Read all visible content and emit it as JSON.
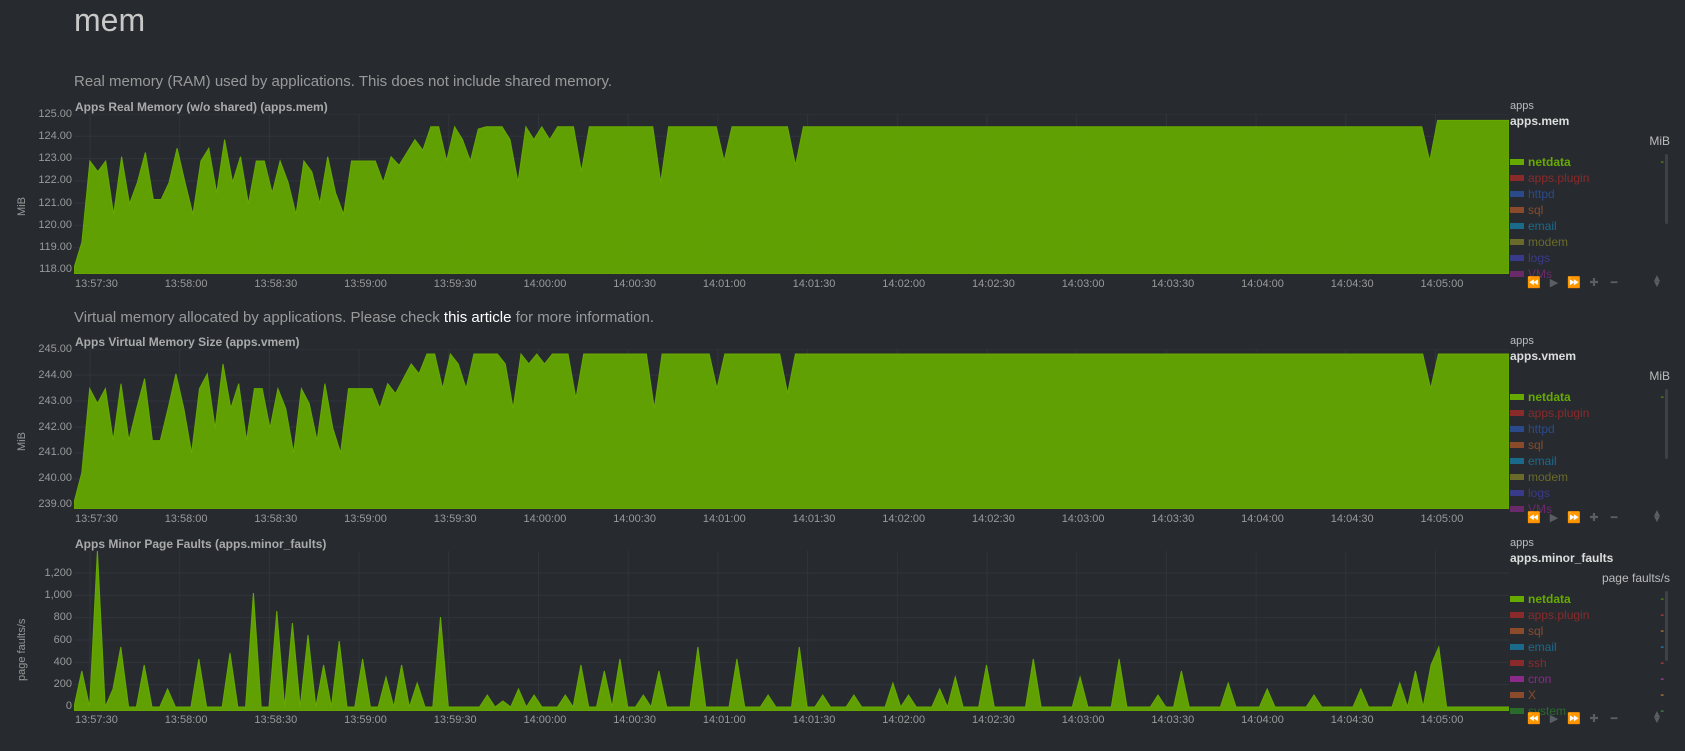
{
  "section": {
    "title": "mem"
  },
  "charts": [
    {
      "id": "mem",
      "description": "Real memory (RAM) used by applications. This does not include shared memory.",
      "title": "Apps Real Memory (w/o shared) (apps.mem)",
      "y_unit": "MiB",
      "yticks": [
        "125.00",
        "124.00",
        "123.00",
        "122.00",
        "121.00",
        "120.00",
        "119.00",
        "118.00"
      ],
      "xticks": [
        "13:57:30",
        "13:58:00",
        "13:58:30",
        "13:59:00",
        "13:59:30",
        "14:00:00",
        "14:00:30",
        "14:01:00",
        "14:01:30",
        "14:02:00",
        "14:02:30",
        "14:03:00",
        "14:03:30",
        "14:04:00",
        "14:04:30",
        "14:05:00"
      ],
      "legend": {
        "context": "apps",
        "chart_id": "apps.mem",
        "unit": "MiB",
        "dims": [
          {
            "name": "netdata",
            "color": "#66aa00",
            "value": "-",
            "value_color": "#66aa00",
            "active": true
          },
          {
            "name": "apps.plugin",
            "color": "#8b2a2a",
            "value": "",
            "value_color": "#8b2a2a",
            "active": false
          },
          {
            "name": "httpd",
            "color": "#2a4a8b",
            "value": "",
            "value_color": "#2a4a8b",
            "active": false
          },
          {
            "name": "sql",
            "color": "#8b4a2a",
            "value": "",
            "value_color": "#8b4a2a",
            "active": false
          },
          {
            "name": "email",
            "color": "#1a6a8b",
            "value": "",
            "value_color": "#1a6a8b",
            "active": false
          },
          {
            "name": "modem",
            "color": "#6a6a2a",
            "value": "",
            "value_color": "#6a6a2a",
            "active": false
          },
          {
            "name": "logs",
            "color": "#3a3a8b",
            "value": "",
            "value_color": "#3a3a8b",
            "active": false
          },
          {
            "name": "VMs",
            "color": "#6a2a6a",
            "value": "",
            "value_color": "#6a2a6a",
            "active": false
          }
        ]
      }
    },
    {
      "id": "vmem",
      "description_pre": "Virtual memory allocated by applications. Please check ",
      "description_link": "this article",
      "description_post": " for more information.",
      "title": "Apps Virtual Memory Size (apps.vmem)",
      "y_unit": "MiB",
      "yticks": [
        "245.00",
        "244.00",
        "243.00",
        "242.00",
        "241.00",
        "240.00",
        "239.00"
      ],
      "xticks": [
        "13:57:30",
        "13:58:00",
        "13:58:30",
        "13:59:00",
        "13:59:30",
        "14:00:00",
        "14:00:30",
        "14:01:00",
        "14:01:30",
        "14:02:00",
        "14:02:30",
        "14:03:00",
        "14:03:30",
        "14:04:00",
        "14:04:30",
        "14:05:00"
      ],
      "legend": {
        "context": "apps",
        "chart_id": "apps.vmem",
        "unit": "MiB",
        "dims": [
          {
            "name": "netdata",
            "color": "#66aa00",
            "value": "-",
            "value_color": "#66aa00",
            "active": true
          },
          {
            "name": "apps.plugin",
            "color": "#8b2a2a",
            "value": "",
            "value_color": "#8b2a2a",
            "active": false
          },
          {
            "name": "httpd",
            "color": "#2a4a8b",
            "value": "",
            "value_color": "#2a4a8b",
            "active": false
          },
          {
            "name": "sql",
            "color": "#8b4a2a",
            "value": "",
            "value_color": "#8b4a2a",
            "active": false
          },
          {
            "name": "email",
            "color": "#1a6a8b",
            "value": "",
            "value_color": "#1a6a8b",
            "active": false
          },
          {
            "name": "modem",
            "color": "#6a6a2a",
            "value": "",
            "value_color": "#6a6a2a",
            "active": false
          },
          {
            "name": "logs",
            "color": "#3a3a8b",
            "value": "",
            "value_color": "#3a3a8b",
            "active": false
          },
          {
            "name": "VMs",
            "color": "#6a2a6a",
            "value": "",
            "value_color": "#6a2a6a",
            "active": false
          }
        ]
      }
    },
    {
      "id": "minor_faults",
      "title": "Apps Minor Page Faults (apps.minor_faults)",
      "y_unit": "page faults/s",
      "yticks": [
        "1,200",
        "1,000",
        "800",
        "600",
        "400",
        "200",
        "0"
      ],
      "xticks": [
        "13:57:30",
        "13:58:00",
        "13:58:30",
        "13:59:00",
        "13:59:30",
        "14:00:00",
        "14:00:30",
        "14:01:00",
        "14:01:30",
        "14:02:00",
        "14:02:30",
        "14:03:00",
        "14:03:30",
        "14:04:00",
        "14:04:30",
        "14:05:00"
      ],
      "legend": {
        "context": "apps",
        "chart_id": "apps.minor_faults",
        "unit": "page faults/s",
        "dims": [
          {
            "name": "netdata",
            "color": "#66aa00",
            "value": "-",
            "value_color": "#66aa00",
            "active": true
          },
          {
            "name": "apps.plugin",
            "color": "#8b2a2a",
            "value": "-",
            "value_color": "#ff4444",
            "active": false
          },
          {
            "name": "sql",
            "color": "#8b4a2a",
            "value": "-",
            "value_color": "#ff9933",
            "active": false
          },
          {
            "name": "email",
            "color": "#1a6a8b",
            "value": "-",
            "value_color": "#22aaff",
            "active": false
          },
          {
            "name": "ssh",
            "color": "#8b2a2a",
            "value": "-",
            "value_color": "#ff4444",
            "active": false
          },
          {
            "name": "cron",
            "color": "#8b2a8b",
            "value": "-",
            "value_color": "#dd44dd",
            "active": false
          },
          {
            "name": "X",
            "color": "#8b4a2a",
            "value": "-",
            "value_color": "#ff9933",
            "active": false
          },
          {
            "name": "system",
            "color": "#2a6a2a",
            "value": "-",
            "value_color": "#44bb44",
            "active": false
          }
        ]
      }
    }
  ],
  "chart_data": [
    {
      "type": "area",
      "title": "Apps Real Memory (w/o shared) (apps.mem)",
      "ylabel": "MiB",
      "ylim": [
        117.9,
        125.2
      ],
      "x_range": [
        "13:57:30",
        "14:05:50"
      ],
      "series": [
        {
          "name": "netdata",
          "color": "#66aa00",
          "values": [
            118.0,
            119.2,
            123.0,
            122.5,
            123.0,
            120.5,
            123.2,
            121.0,
            122.0,
            123.4,
            121.2,
            121.2,
            122.0,
            123.6,
            122.0,
            120.5,
            123.0,
            123.6,
            121.5,
            124.0,
            122.0,
            123.2,
            121.0,
            123.0,
            123.0,
            121.5,
            123.0,
            122.0,
            120.5,
            123.0,
            122.5,
            121.0,
            123.2,
            121.5,
            120.5,
            123.0,
            123.0,
            123.0,
            123.0,
            122.0,
            123.2,
            122.8,
            123.4,
            124.0,
            123.5,
            124.6,
            124.6,
            123.0,
            124.6,
            124.0,
            123.0,
            124.5,
            124.6,
            124.6,
            124.6,
            124.0,
            122.0,
            124.6,
            124.0,
            124.6,
            124.0,
            124.6,
            124.6,
            124.6,
            122.5,
            124.6,
            124.6,
            124.6,
            124.6,
            124.6,
            124.6,
            124.6,
            124.6,
            124.6,
            122.0,
            124.6,
            124.6,
            124.6,
            124.6,
            124.6,
            124.6,
            124.6,
            123.0,
            124.6,
            124.6,
            124.6,
            124.6,
            124.6,
            124.6,
            124.6,
            124.6,
            122.8,
            124.6,
            124.6,
            124.6,
            124.6,
            124.6,
            124.6,
            124.6,
            124.6,
            124.6,
            124.6,
            124.6,
            124.6,
            124.6,
            124.6,
            124.6,
            124.6,
            124.6,
            124.6,
            124.6,
            124.6,
            124.6,
            124.6,
            124.6,
            124.6,
            124.6,
            124.6,
            124.6,
            124.6,
            124.6,
            124.6,
            124.6,
            124.6,
            124.6,
            124.6,
            124.6,
            124.6,
            124.6,
            124.6,
            124.6,
            124.6,
            124.6,
            124.6,
            124.6,
            124.6,
            124.6,
            124.6,
            124.6,
            124.6,
            124.6,
            124.6,
            124.6,
            124.6,
            124.6,
            124.6,
            124.6,
            124.6,
            124.6,
            124.6,
            124.6,
            124.6,
            124.6,
            124.6,
            124.6,
            124.6,
            124.6,
            124.6,
            124.6,
            124.6,
            124.6,
            124.6,
            124.6,
            124.6,
            124.6,
            124.6,
            124.6,
            124.6,
            124.6,
            124.6,
            124.6,
            123.0,
            124.9,
            124.9,
            124.9,
            124.9,
            124.9,
            124.9,
            124.9,
            124.9,
            124.9,
            124.9
          ]
        }
      ]
    },
    {
      "type": "area",
      "title": "Apps Virtual Memory Size (apps.vmem)",
      "ylabel": "MiB",
      "ylim": [
        238.9,
        245.2
      ],
      "x_range": [
        "13:57:30",
        "14:05:50"
      ],
      "series": [
        {
          "name": "netdata",
          "color": "#66aa00",
          "values": [
            239.0,
            240.2,
            243.6,
            243.0,
            243.6,
            241.5,
            243.8,
            241.5,
            242.8,
            244.0,
            241.5,
            241.5,
            242.8,
            244.2,
            242.8,
            241.0,
            243.6,
            244.2,
            242.0,
            244.6,
            242.8,
            243.8,
            241.5,
            243.6,
            243.6,
            242.0,
            243.6,
            242.8,
            241.0,
            243.6,
            243.0,
            241.5,
            243.8,
            242.0,
            241.0,
            243.6,
            243.6,
            243.6,
            243.6,
            242.8,
            243.8,
            243.4,
            244.0,
            244.6,
            244.2,
            245.0,
            245.0,
            243.6,
            245.0,
            244.6,
            243.6,
            245.0,
            245.0,
            245.0,
            245.0,
            244.6,
            242.8,
            245.0,
            244.6,
            245.0,
            244.6,
            245.0,
            245.0,
            245.0,
            243.2,
            245.0,
            245.0,
            245.0,
            245.0,
            245.0,
            245.0,
            245.0,
            245.0,
            245.0,
            242.8,
            245.0,
            245.0,
            245.0,
            245.0,
            245.0,
            245.0,
            245.0,
            243.6,
            245.0,
            245.0,
            245.0,
            245.0,
            245.0,
            245.0,
            245.0,
            245.0,
            243.4,
            245.0,
            245.0,
            245.0,
            245.0,
            245.0,
            245.0,
            245.0,
            245.0,
            245.0,
            245.0,
            245.0,
            245.0,
            245.0,
            245.0,
            245.0,
            245.0,
            245.0,
            245.0,
            245.0,
            245.0,
            245.0,
            245.0,
            245.0,
            245.0,
            245.0,
            245.0,
            245.0,
            245.0,
            245.0,
            245.0,
            245.0,
            245.0,
            245.0,
            245.0,
            245.0,
            245.0,
            245.0,
            245.0,
            245.0,
            245.0,
            245.0,
            245.0,
            245.0,
            245.0,
            245.0,
            245.0,
            245.0,
            245.0,
            245.0,
            245.0,
            245.0,
            245.0,
            245.0,
            245.0,
            245.0,
            245.0,
            245.0,
            245.0,
            245.0,
            245.0,
            245.0,
            245.0,
            245.0,
            245.0,
            245.0,
            245.0,
            245.0,
            245.0,
            245.0,
            245.0,
            245.0,
            245.0,
            245.0,
            245.0,
            245.0,
            245.0,
            245.0,
            245.0,
            245.0,
            245.0,
            245.0,
            243.6,
            245.0,
            245.0,
            245.0,
            245.0,
            245.0,
            245.0,
            245.0,
            245.0,
            245.0,
            245.0
          ]
        }
      ]
    },
    {
      "type": "area",
      "title": "Apps Minor Page Faults (apps.minor_faults)",
      "ylabel": "page faults/s",
      "ylim": [
        0,
        1300
      ],
      "x_range": [
        "13:57:30",
        "14:05:50"
      ],
      "series": [
        {
          "name": "netdata",
          "color": "#66aa00",
          "values": [
            0,
            300,
            0,
            1300,
            0,
            150,
            500,
            0,
            0,
            350,
            0,
            0,
            150,
            0,
            0,
            0,
            400,
            0,
            0,
            0,
            450,
            0,
            0,
            950,
            0,
            0,
            800,
            0,
            700,
            0,
            600,
            0,
            350,
            0,
            550,
            0,
            0,
            400,
            0,
            0,
            250,
            0,
            350,
            0,
            200,
            0,
            0,
            750,
            0,
            0,
            0,
            0,
            0,
            100,
            0,
            50,
            0,
            150,
            0,
            100,
            0,
            0,
            0,
            100,
            0,
            350,
            0,
            0,
            300,
            0,
            400,
            0,
            0,
            100,
            0,
            300,
            0,
            0,
            0,
            0,
            500,
            0,
            0,
            0,
            0,
            400,
            0,
            0,
            0,
            100,
            0,
            0,
            0,
            500,
            0,
            0,
            100,
            0,
            0,
            0,
            100,
            0,
            0,
            0,
            0,
            200,
            0,
            100,
            0,
            0,
            0,
            150,
            0,
            250,
            0,
            0,
            0,
            350,
            0,
            0,
            0,
            0,
            0,
            400,
            0,
            0,
            0,
            0,
            0,
            250,
            0,
            0,
            0,
            0,
            400,
            0,
            0,
            0,
            0,
            100,
            0,
            0,
            300,
            0,
            0,
            0,
            0,
            0,
            200,
            0,
            0,
            0,
            0,
            150,
            0,
            0,
            0,
            0,
            0,
            100,
            0,
            0,
            0,
            0,
            0,
            150,
            0,
            0,
            0,
            0,
            200,
            0,
            300,
            0,
            350,
            500,
            0,
            0,
            0,
            0,
            0,
            0,
            0,
            0,
            0
          ]
        }
      ]
    }
  ]
}
